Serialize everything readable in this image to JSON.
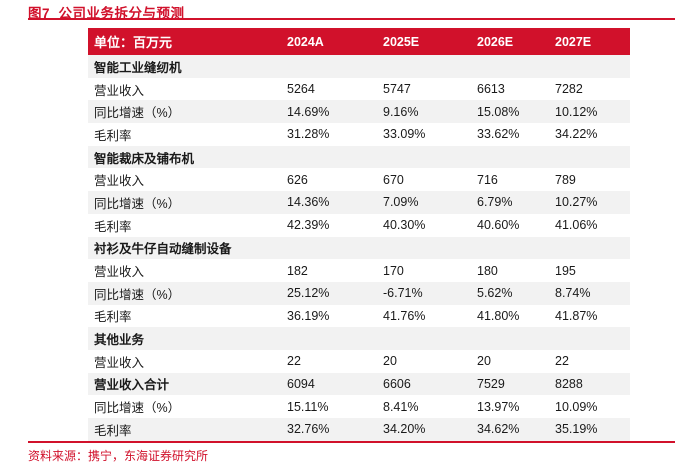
{
  "page": {
    "figure_title": "图7  公司业务拆分与预测",
    "source_note": "资料来源：携宁，东海证券研究所"
  },
  "colors": {
    "accent_red": "#D1112B",
    "stripe_gray": "#F2F2F2",
    "header_text": "#FFFFFF",
    "body_text": "#1A1A1A"
  },
  "table": {
    "unit_header": "单位：百万元",
    "year_columns": [
      "2024A",
      "2025E",
      "2026E",
      "2027E"
    ],
    "rows": [
      {
        "label": "智能工业缝纫机",
        "type": "section",
        "values": []
      },
      {
        "label": "营业收入",
        "type": "data",
        "values": [
          "5264",
          "5747",
          "6613",
          "7282"
        ]
      },
      {
        "label": "同比增速（%）",
        "type": "data",
        "values": [
          "14.69%",
          "9.16%",
          "15.08%",
          "10.12%"
        ]
      },
      {
        "label": "毛利率",
        "type": "data",
        "values": [
          "31.28%",
          "33.09%",
          "33.62%",
          "34.22%"
        ]
      },
      {
        "label": "智能裁床及铺布机",
        "type": "section",
        "values": []
      },
      {
        "label": "营业收入",
        "type": "data",
        "values": [
          "626",
          "670",
          "716",
          "789"
        ]
      },
      {
        "label": "同比增速（%）",
        "type": "data",
        "values": [
          "14.36%",
          "7.09%",
          "6.79%",
          "10.27%"
        ]
      },
      {
        "label": "毛利率",
        "type": "data",
        "values": [
          "42.39%",
          "40.30%",
          "40.60%",
          "41.06%"
        ]
      },
      {
        "label": "衬衫及牛仔自动缝制设备",
        "type": "section",
        "values": []
      },
      {
        "label": "营业收入",
        "type": "data",
        "values": [
          "182",
          "170",
          "180",
          "195"
        ]
      },
      {
        "label": "同比增速（%）",
        "type": "data",
        "values": [
          "25.12%",
          "-6.71%",
          "5.62%",
          "8.74%"
        ]
      },
      {
        "label": "毛利率",
        "type": "data",
        "values": [
          "36.19%",
          "41.76%",
          "41.80%",
          "41.87%"
        ]
      },
      {
        "label": "其他业务",
        "type": "section",
        "values": []
      },
      {
        "label": "营业收入",
        "type": "data",
        "values": [
          "22",
          "20",
          "20",
          "22"
        ]
      },
      {
        "label": "营业收入合计",
        "type": "total",
        "values": [
          "6094",
          "6606",
          "7529",
          "8288"
        ]
      },
      {
        "label": "同比增速（%）",
        "type": "data",
        "values": [
          "15.11%",
          "8.41%",
          "13.97%",
          "10.09%"
        ]
      },
      {
        "label": "毛利率",
        "type": "data",
        "values": [
          "32.76%",
          "34.20%",
          "34.62%",
          "35.19%"
        ]
      }
    ]
  }
}
